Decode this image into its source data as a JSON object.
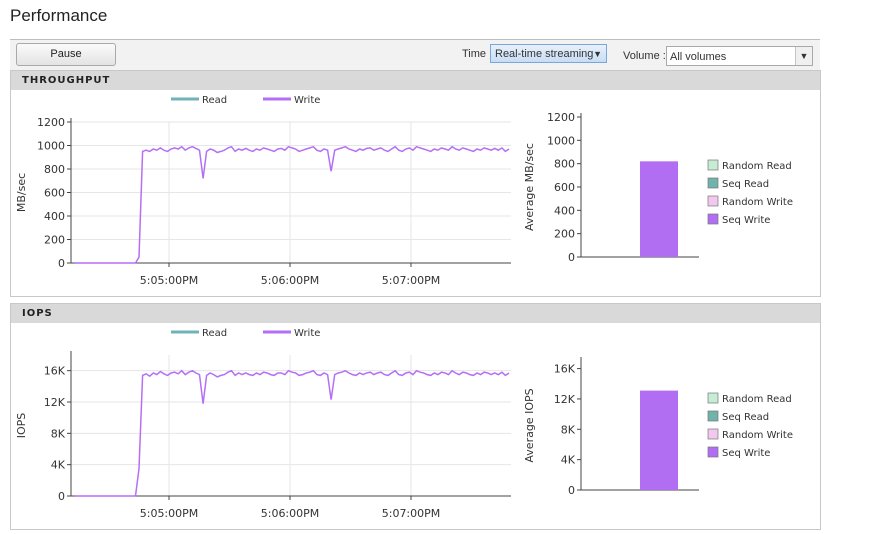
{
  "page": {
    "title": "Performance"
  },
  "toolbar": {
    "pause_label": "Pause",
    "time_label": "Time",
    "time_value": "Real-time streaming",
    "volume_label": "Volume :",
    "volume_value": "All volumes"
  },
  "panels": [
    {
      "header": "THROUGHPUT",
      "line_chart_ylabel": "MB/sec",
      "bar_chart_ylabel": "Average MB/sec"
    },
    {
      "header": "IOPS",
      "line_chart_ylabel": "IOPS",
      "bar_chart_ylabel": "Average IOPS"
    }
  ],
  "colors": {
    "read": "#6fb3b8",
    "write": "#b56ff5",
    "write_bar": "#b26ef2"
  },
  "chart_data": [
    {
      "type": "line",
      "title": "",
      "ylabel": "MB/sec",
      "ylim": [
        0,
        1200
      ],
      "yticks": [
        "0",
        "200",
        "400",
        "600",
        "800",
        "1000",
        "1200"
      ],
      "xticks": [
        "5:05:00PM",
        "5:06:00PM",
        "5:07:00PM"
      ],
      "legend": [
        "Read",
        "Write"
      ],
      "series": [
        {
          "name": "Read",
          "values": []
        },
        {
          "name": "Write",
          "values": [
            0,
            0,
            0,
            0,
            0,
            0,
            0,
            0,
            0,
            0,
            0,
            0,
            0,
            0,
            0,
            0,
            0,
            0,
            50,
            950,
            960,
            950,
            970,
            960,
            980,
            960,
            950,
            970,
            980,
            970,
            990,
            960,
            980,
            990,
            975,
            960,
            720,
            950,
            970,
            960,
            940,
            950,
            960,
            980,
            990,
            950,
            970,
            960,
            975,
            960,
            950,
            970,
            960,
            980,
            970,
            960,
            950,
            970,
            975,
            960,
            990,
            980,
            970,
            950,
            960,
            970,
            980,
            990,
            960,
            950,
            970,
            960,
            780,
            960,
            970,
            980,
            990,
            970,
            960,
            950,
            970,
            960,
            975,
            980,
            960,
            970,
            980,
            960,
            950,
            970,
            990,
            960,
            950,
            970,
            980,
            960,
            990,
            980,
            970,
            960,
            950,
            970,
            960,
            980,
            970,
            960,
            990,
            970,
            960,
            980,
            970,
            960,
            950,
            970,
            960,
            980,
            970,
            960,
            975,
            960,
            980,
            950,
            970
          ]
        }
      ]
    },
    {
      "type": "bar",
      "title": "",
      "ylabel": "Average MB/sec",
      "ylim": [
        0,
        1200
      ],
      "yticks": [
        "0",
        "200",
        "400",
        "600",
        "800",
        "1000",
        "1200"
      ],
      "legend": [
        "Random Read",
        "Seq Read",
        "Random Write",
        "Seq Write"
      ],
      "legend_colors": [
        "#c7ecd4",
        "#6fb3aa",
        "#f2c8ef",
        "#b26ef2"
      ],
      "categories": [
        "Seq Write"
      ],
      "values": [
        820
      ]
    },
    {
      "type": "line",
      "title": "",
      "ylabel": "IOPS",
      "ylim": [
        0,
        18000
      ],
      "yticks": [
        "0",
        "4K",
        "8K",
        "12K",
        "16K"
      ],
      "xticks": [
        "5:05:00PM",
        "5:06:00PM",
        "5:07:00PM"
      ],
      "legend": [
        "Read",
        "Write"
      ],
      "series": [
        {
          "name": "Read",
          "values": []
        },
        {
          "name": "Write",
          "values": [
            0,
            0,
            0,
            0,
            0,
            0,
            0,
            0,
            0,
            0,
            0,
            0,
            0,
            0,
            0,
            0,
            0,
            0,
            3500,
            15400,
            15600,
            15300,
            15700,
            15500,
            15900,
            15600,
            15400,
            15700,
            15800,
            15600,
            16000,
            15500,
            15800,
            16000,
            15700,
            15500,
            11800,
            15400,
            15700,
            15500,
            15200,
            15400,
            15500,
            15800,
            16000,
            15400,
            15700,
            15500,
            15700,
            15500,
            15400,
            15700,
            15500,
            15800,
            15700,
            15500,
            15400,
            15700,
            15700,
            15500,
            16000,
            15800,
            15700,
            15400,
            15500,
            15700,
            15800,
            16000,
            15500,
            15400,
            15700,
            15500,
            12300,
            15500,
            15700,
            15800,
            16000,
            15700,
            15500,
            15400,
            15700,
            15500,
            15700,
            15800,
            15500,
            15700,
            15800,
            15500,
            15400,
            15700,
            16000,
            15500,
            15400,
            15700,
            15800,
            15500,
            16000,
            15800,
            15700,
            15500,
            15400,
            15700,
            15500,
            15800,
            15700,
            15500,
            16000,
            15700,
            15500,
            15800,
            15700,
            15500,
            15400,
            15700,
            15500,
            15800,
            15700,
            15500,
            15700,
            15500,
            15800,
            15400,
            15700
          ]
        }
      ]
    },
    {
      "type": "bar",
      "title": "",
      "ylabel": "Average IOPS",
      "ylim": [
        0,
        17000
      ],
      "yticks": [
        "0",
        "4K",
        "8K",
        "12K",
        "16K"
      ],
      "legend": [
        "Random Read",
        "Seq Read",
        "Random Write",
        "Seq Write"
      ],
      "legend_colors": [
        "#c7ecd4",
        "#6fb3aa",
        "#f2c8ef",
        "#b26ef2"
      ],
      "categories": [
        "Seq Write"
      ],
      "values": [
        13100
      ]
    }
  ]
}
